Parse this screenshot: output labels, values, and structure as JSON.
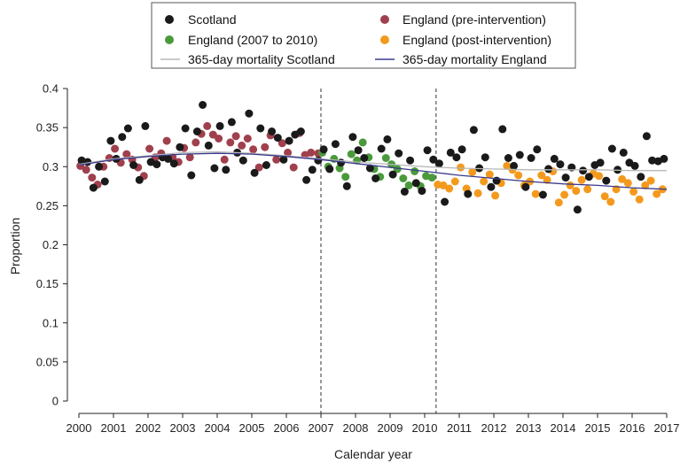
{
  "chart_data": {
    "type": "scatter",
    "xlabel": "Calendar year",
    "ylabel": "Proportion",
    "xlim": [
      2000,
      2017
    ],
    "ylim": [
      0,
      0.4
    ],
    "xticks": [
      "2000",
      "2001",
      "2002",
      "2003",
      "2004",
      "2005",
      "2006",
      "2007",
      "2008",
      "2009",
      "2010",
      "2011",
      "2012",
      "2013",
      "2014",
      "2015",
      "2016",
      "2017"
    ],
    "yticks": [
      "0",
      "0.05",
      "0.1",
      "0.15",
      "0.2",
      "0.25",
      "0.3",
      "0.35",
      "0.4"
    ],
    "grid": false,
    "legend_position": "top",
    "intervention_lines": [
      2007.0,
      2010.33
    ],
    "legend": [
      {
        "label": "Scotland",
        "kind": "marker",
        "color": "#1a1a1a"
      },
      {
        "label": "England (pre-intervention)",
        "kind": "marker",
        "color": "#a0404d"
      },
      {
        "label": "England (2007 to 2010)",
        "kind": "marker",
        "color": "#4a9a3c"
      },
      {
        "label": "England (post-intervention)",
        "kind": "marker",
        "color": "#f39a1e"
      },
      {
        "label": "365-day mortality Scotland",
        "kind": "line",
        "color": "#b8b8b8"
      },
      {
        "label": "365-day mortality England",
        "kind": "line",
        "color": "#3a3a8c"
      }
    ],
    "series": [
      {
        "name": "Scotland",
        "color": "#1a1a1a",
        "points": [
          [
            2000.08,
            0.308
          ],
          [
            2000.25,
            0.306
          ],
          [
            2000.42,
            0.273
          ],
          [
            2000.58,
            0.3
          ],
          [
            2000.75,
            0.281
          ],
          [
            2000.92,
            0.333
          ],
          [
            2001.08,
            0.31
          ],
          [
            2001.25,
            0.338
          ],
          [
            2001.42,
            0.349
          ],
          [
            2001.58,
            0.302
          ],
          [
            2001.75,
            0.283
          ],
          [
            2001.92,
            0.352
          ],
          [
            2002.08,
            0.306
          ],
          [
            2002.25,
            0.303
          ],
          [
            2002.42,
            0.312
          ],
          [
            2002.58,
            0.31
          ],
          [
            2002.75,
            0.304
          ],
          [
            2002.92,
            0.325
          ],
          [
            2003.08,
            0.349
          ],
          [
            2003.25,
            0.289
          ],
          [
            2003.42,
            0.345
          ],
          [
            2003.58,
            0.379
          ],
          [
            2003.75,
            0.327
          ],
          [
            2003.92,
            0.298
          ],
          [
            2004.08,
            0.352
          ],
          [
            2004.25,
            0.296
          ],
          [
            2004.42,
            0.357
          ],
          [
            2004.58,
            0.318
          ],
          [
            2004.75,
            0.308
          ],
          [
            2004.92,
            0.368
          ],
          [
            2005.08,
            0.292
          ],
          [
            2005.25,
            0.349
          ],
          [
            2005.42,
            0.302
          ],
          [
            2005.58,
            0.345
          ],
          [
            2005.75,
            0.337
          ],
          [
            2005.92,
            0.309
          ],
          [
            2006.08,
            0.333
          ],
          [
            2006.25,
            0.341
          ],
          [
            2006.42,
            0.345
          ],
          [
            2006.58,
            0.283
          ],
          [
            2006.75,
            0.296
          ],
          [
            2006.92,
            0.308
          ],
          [
            2007.08,
            0.322
          ],
          [
            2007.25,
            0.297
          ],
          [
            2007.42,
            0.329
          ],
          [
            2007.58,
            0.305
          ],
          [
            2007.75,
            0.275
          ],
          [
            2007.92,
            0.338
          ],
          [
            2008.08,
            0.321
          ],
          [
            2008.25,
            0.311
          ],
          [
            2008.42,
            0.298
          ],
          [
            2008.58,
            0.285
          ],
          [
            2008.75,
            0.323
          ],
          [
            2008.92,
            0.335
          ],
          [
            2009.08,
            0.29
          ],
          [
            2009.25,
            0.317
          ],
          [
            2009.42,
            0.268
          ],
          [
            2009.58,
            0.308
          ],
          [
            2009.75,
            0.279
          ],
          [
            2009.92,
            0.269
          ],
          [
            2010.08,
            0.321
          ],
          [
            2010.25,
            0.309
          ],
          [
            2010.42,
            0.304
          ],
          [
            2010.58,
            0.255
          ],
          [
            2010.75,
            0.318
          ],
          [
            2010.92,
            0.312
          ],
          [
            2011.08,
            0.322
          ],
          [
            2011.25,
            0.265
          ],
          [
            2011.42,
            0.347
          ],
          [
            2011.58,
            0.298
          ],
          [
            2011.75,
            0.312
          ],
          [
            2011.92,
            0.274
          ],
          [
            2012.08,
            0.282
          ],
          [
            2012.25,
            0.348
          ],
          [
            2012.42,
            0.311
          ],
          [
            2012.58,
            0.301
          ],
          [
            2012.75,
            0.315
          ],
          [
            2012.92,
            0.274
          ],
          [
            2013.08,
            0.311
          ],
          [
            2013.25,
            0.322
          ],
          [
            2013.42,
            0.264
          ],
          [
            2013.58,
            0.297
          ],
          [
            2013.75,
            0.31
          ],
          [
            2013.92,
            0.303
          ],
          [
            2014.08,
            0.286
          ],
          [
            2014.25,
            0.299
          ],
          [
            2014.42,
            0.245
          ],
          [
            2014.58,
            0.295
          ],
          [
            2014.75,
            0.287
          ],
          [
            2014.92,
            0.302
          ],
          [
            2015.08,
            0.305
          ],
          [
            2015.25,
            0.282
          ],
          [
            2015.42,
            0.323
          ],
          [
            2015.58,
            0.296
          ],
          [
            2015.75,
            0.318
          ],
          [
            2015.92,
            0.305
          ],
          [
            2016.08,
            0.301
          ],
          [
            2016.25,
            0.287
          ],
          [
            2016.42,
            0.339
          ],
          [
            2016.58,
            0.308
          ],
          [
            2016.75,
            0.307
          ],
          [
            2016.92,
            0.31
          ]
        ]
      },
      {
        "name": "England (pre-intervention)",
        "color": "#a0404d",
        "points": [
          [
            2000.04,
            0.301
          ],
          [
            2000.21,
            0.296
          ],
          [
            2000.38,
            0.286
          ],
          [
            2000.54,
            0.277
          ],
          [
            2000.71,
            0.3
          ],
          [
            2000.88,
            0.311
          ],
          [
            2001.04,
            0.323
          ],
          [
            2001.21,
            0.305
          ],
          [
            2001.38,
            0.316
          ],
          [
            2001.54,
            0.309
          ],
          [
            2001.71,
            0.299
          ],
          [
            2001.88,
            0.288
          ],
          [
            2002.04,
            0.323
          ],
          [
            2002.21,
            0.312
          ],
          [
            2002.38,
            0.317
          ],
          [
            2002.54,
            0.333
          ],
          [
            2002.71,
            0.312
          ],
          [
            2002.88,
            0.306
          ],
          [
            2003.04,
            0.324
          ],
          [
            2003.21,
            0.312
          ],
          [
            2003.38,
            0.331
          ],
          [
            2003.54,
            0.342
          ],
          [
            2003.71,
            0.352
          ],
          [
            2003.88,
            0.341
          ],
          [
            2004.04,
            0.336
          ],
          [
            2004.21,
            0.309
          ],
          [
            2004.38,
            0.331
          ],
          [
            2004.54,
            0.339
          ],
          [
            2004.71,
            0.327
          ],
          [
            2004.88,
            0.336
          ],
          [
            2005.04,
            0.322
          ],
          [
            2005.21,
            0.299
          ],
          [
            2005.38,
            0.325
          ],
          [
            2005.54,
            0.34
          ],
          [
            2005.71,
            0.309
          ],
          [
            2005.88,
            0.33
          ],
          [
            2006.04,
            0.318
          ],
          [
            2006.21,
            0.299
          ],
          [
            2006.38,
            0.343
          ],
          [
            2006.54,
            0.315
          ],
          [
            2006.71,
            0.318
          ],
          [
            2006.92,
            0.317
          ]
        ]
      },
      {
        "name": "England (2007 to 2010)",
        "color": "#4a9a3c",
        "points": [
          [
            2007.04,
            0.318
          ],
          [
            2007.21,
            0.3
          ],
          [
            2007.38,
            0.31
          ],
          [
            2007.54,
            0.298
          ],
          [
            2007.71,
            0.287
          ],
          [
            2007.88,
            0.316
          ],
          [
            2008.04,
            0.308
          ],
          [
            2008.21,
            0.331
          ],
          [
            2008.38,
            0.312
          ],
          [
            2008.54,
            0.297
          ],
          [
            2008.71,
            0.287
          ],
          [
            2008.88,
            0.311
          ],
          [
            2009.04,
            0.303
          ],
          [
            2009.21,
            0.297
          ],
          [
            2009.38,
            0.285
          ],
          [
            2009.54,
            0.276
          ],
          [
            2009.71,
            0.294
          ],
          [
            2009.88,
            0.275
          ],
          [
            2010.04,
            0.288
          ],
          [
            2010.21,
            0.286
          ]
        ]
      },
      {
        "name": "England (post-intervention)",
        "color": "#f39a1e",
        "points": [
          [
            2010.38,
            0.277
          ],
          [
            2010.54,
            0.276
          ],
          [
            2010.71,
            0.272
          ],
          [
            2010.88,
            0.281
          ],
          [
            2011.04,
            0.299
          ],
          [
            2011.21,
            0.272
          ],
          [
            2011.38,
            0.293
          ],
          [
            2011.54,
            0.266
          ],
          [
            2011.71,
            0.281
          ],
          [
            2011.88,
            0.29
          ],
          [
            2012.04,
            0.263
          ],
          [
            2012.21,
            0.279
          ],
          [
            2012.38,
            0.301
          ],
          [
            2012.54,
            0.296
          ],
          [
            2012.71,
            0.289
          ],
          [
            2012.88,
            0.276
          ],
          [
            2013.04,
            0.281
          ],
          [
            2013.21,
            0.265
          ],
          [
            2013.38,
            0.289
          ],
          [
            2013.54,
            0.283
          ],
          [
            2013.71,
            0.294
          ],
          [
            2013.88,
            0.254
          ],
          [
            2014.04,
            0.264
          ],
          [
            2014.21,
            0.276
          ],
          [
            2014.38,
            0.269
          ],
          [
            2014.54,
            0.283
          ],
          [
            2014.71,
            0.271
          ],
          [
            2014.88,
            0.291
          ],
          [
            2015.04,
            0.288
          ],
          [
            2015.21,
            0.262
          ],
          [
            2015.38,
            0.255
          ],
          [
            2015.54,
            0.271
          ],
          [
            2015.71,
            0.284
          ],
          [
            2015.88,
            0.279
          ],
          [
            2016.04,
            0.268
          ],
          [
            2016.21,
            0.258
          ],
          [
            2016.38,
            0.276
          ],
          [
            2016.54,
            0.282
          ],
          [
            2016.71,
            0.265
          ],
          [
            2016.88,
            0.271
          ]
        ]
      },
      {
        "name": "365-day mortality Scotland",
        "kind": "line",
        "color": "#b8b8b8",
        "points": [
          [
            2000,
            0.303
          ],
          [
            2001,
            0.31
          ],
          [
            2002,
            0.314
          ],
          [
            2003,
            0.318
          ],
          [
            2004,
            0.319
          ],
          [
            2005,
            0.317
          ],
          [
            2006,
            0.314
          ],
          [
            2007,
            0.31
          ],
          [
            2008,
            0.306
          ],
          [
            2009,
            0.303
          ],
          [
            2010,
            0.3
          ],
          [
            2011,
            0.298
          ],
          [
            2012,
            0.297
          ],
          [
            2013,
            0.296
          ],
          [
            2014,
            0.296
          ],
          [
            2015,
            0.296
          ],
          [
            2016,
            0.295
          ],
          [
            2017,
            0.295
          ]
        ]
      },
      {
        "name": "365-day mortality England",
        "kind": "line",
        "color": "#3a3a8c",
        "points": [
          [
            2000,
            0.302
          ],
          [
            2001,
            0.309
          ],
          [
            2002,
            0.313
          ],
          [
            2003,
            0.316
          ],
          [
            2004,
            0.317
          ],
          [
            2005,
            0.316
          ],
          [
            2006,
            0.313
          ],
          [
            2007,
            0.309
          ],
          [
            2008,
            0.304
          ],
          [
            2009,
            0.299
          ],
          [
            2010,
            0.294
          ],
          [
            2011,
            0.289
          ],
          [
            2012,
            0.285
          ],
          [
            2013,
            0.281
          ],
          [
            2014,
            0.278
          ],
          [
            2015,
            0.276
          ],
          [
            2016,
            0.273
          ],
          [
            2017,
            0.271
          ]
        ]
      }
    ]
  }
}
